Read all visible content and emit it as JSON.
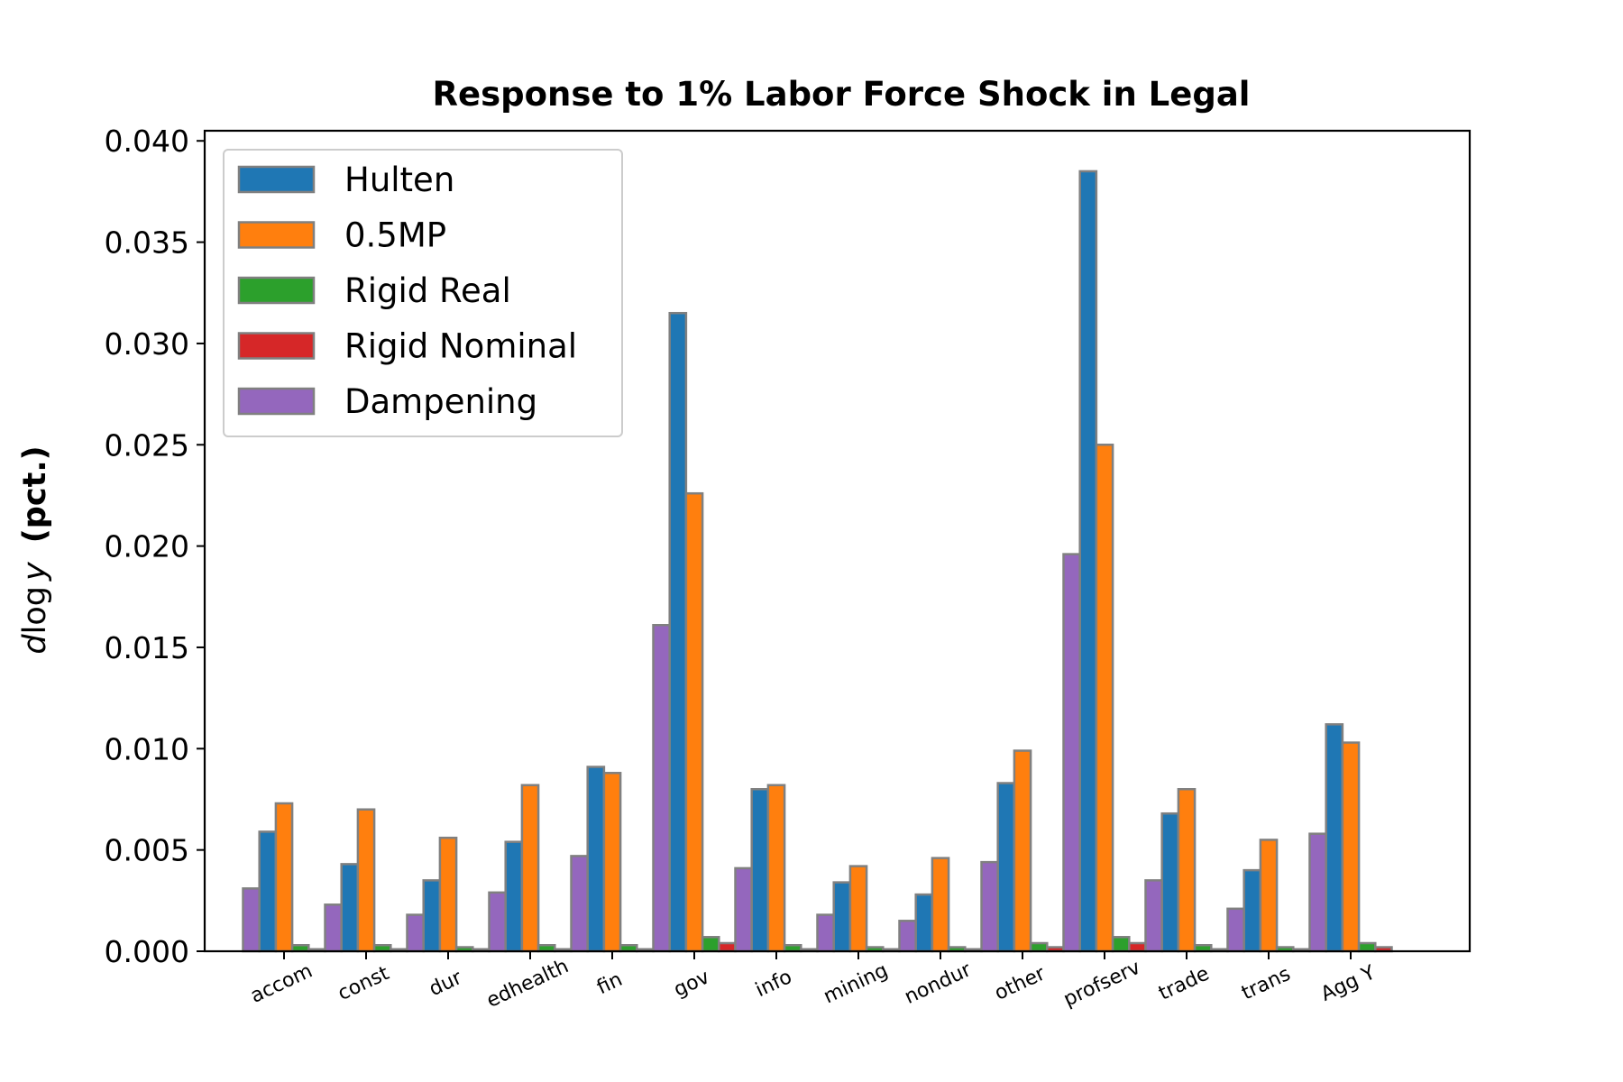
{
  "chart_data": {
    "type": "bar",
    "title": "Response to 1% Labor Force Shock in Legal",
    "ylabel": {
      "math": "d log y",
      "unit": "(pct.)"
    },
    "xlabel": "",
    "ylim": [
      0,
      0.0405
    ],
    "yticks": [
      "0.000",
      "0.005",
      "0.010",
      "0.015",
      "0.020",
      "0.025",
      "0.030",
      "0.035",
      "0.040"
    ],
    "grid": false,
    "legend_position": "upper-left",
    "categories": [
      "accom",
      "const",
      "dur",
      "edhealth",
      "fin",
      "gov",
      "info",
      "mining",
      "nondur",
      "other",
      "profserv",
      "trade",
      "trans",
      "Agg Y"
    ],
    "series": [
      {
        "name": "Hulten",
        "color": "#1f77b4",
        "values": [
          0.0059,
          0.0043,
          0.0035,
          0.0054,
          0.0091,
          0.0315,
          0.008,
          0.0034,
          0.0028,
          0.0083,
          0.0385,
          0.0068,
          0.004,
          0.0112
        ]
      },
      {
        "name": "0.5MP",
        "color": "#ff7f0e",
        "values": [
          0.0073,
          0.007,
          0.0056,
          0.0082,
          0.0088,
          0.0226,
          0.0082,
          0.0042,
          0.0046,
          0.0099,
          0.025,
          0.008,
          0.0055,
          0.0103
        ]
      },
      {
        "name": "Rigid Real",
        "color": "#2ca02c",
        "values": [
          0.0003,
          0.0003,
          0.0002,
          0.0003,
          0.0003,
          0.0007,
          0.0003,
          0.0002,
          0.0002,
          0.0004,
          0.0007,
          0.0003,
          0.0002,
          0.0004
        ]
      },
      {
        "name": "Rigid Nominal",
        "color": "#d62728",
        "values": [
          0.0001,
          0.0001,
          0.0001,
          0.0001,
          0.0001,
          0.0004,
          0.0001,
          0.0001,
          0.0001,
          0.0002,
          0.0004,
          0.0001,
          0.0001,
          0.0002
        ]
      },
      {
        "name": "Dampening",
        "color": "#9467bd",
        "values": [
          0.0031,
          0.0023,
          0.0018,
          0.0029,
          0.0047,
          0.0161,
          0.0041,
          0.0018,
          0.0015,
          0.0044,
          0.0196,
          0.0035,
          0.0021,
          0.0058
        ]
      }
    ],
    "bar_edge_color": "#808080"
  }
}
